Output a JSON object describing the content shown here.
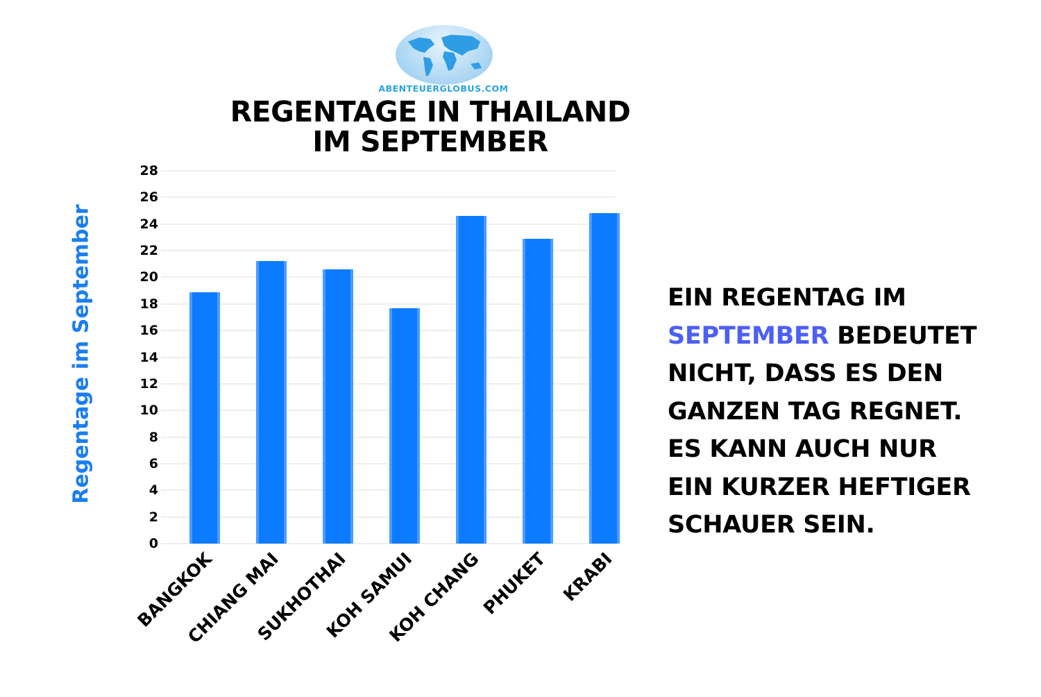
{
  "logo": {
    "text": "ABENTEUERGLOBUS.COM",
    "icon": "world-map-globe-icon",
    "color": "#29a3e6"
  },
  "title_lines": [
    "REGENTAGE IN THAILAND",
    "IM SEPTEMBER"
  ],
  "note": {
    "lines": [
      "EIN REGENTAG IM",
      "BEDEUTET",
      "NICHT, DASS ES DEN",
      "GANZEN TAG REGNET.",
      "ES KANN AUCH NUR",
      "EIN KURZER HEFTIGER",
      "SCHAUER SEIN."
    ],
    "highlight": "SEPTEMBER",
    "highlight_color": "#4c5ff5"
  },
  "colors": {
    "bar": "#0d7bff",
    "ylabel": "#1a7ef0",
    "grid": "#eeeeee"
  },
  "chart_data": {
    "type": "bar",
    "title": "REGENTAGE IN THAILAND IM SEPTEMBER",
    "xlabel": "",
    "ylabel": "Regentage im September",
    "categories": [
      "BANGKOK",
      "CHIANG MAI",
      "SUKHOTHAI",
      "KOH SAMUI",
      "KOH CHANG",
      "PHUKET",
      "KRABI"
    ],
    "values": [
      18.9,
      21.2,
      20.6,
      17.7,
      24.6,
      22.9,
      24.8
    ],
    "ylim": [
      0,
      28
    ],
    "yticks": [
      0,
      2,
      4,
      6,
      8,
      10,
      12,
      14,
      16,
      18,
      20,
      22,
      24,
      26,
      28
    ],
    "grid": true,
    "legend": null
  }
}
